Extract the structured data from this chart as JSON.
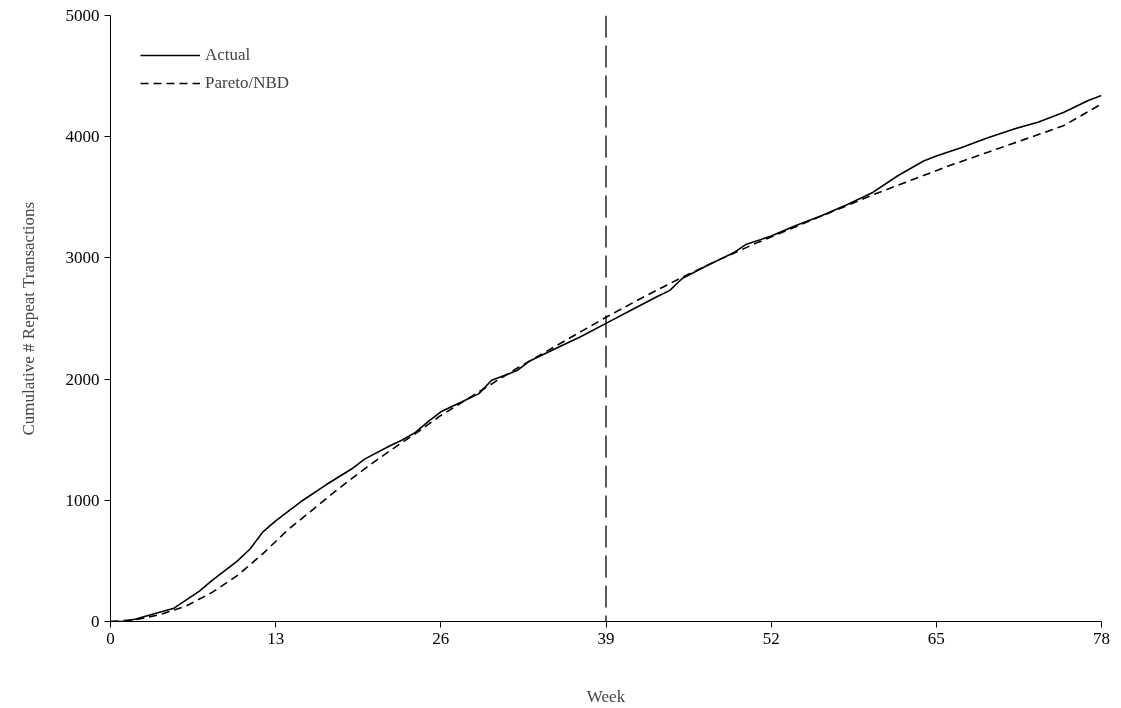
{
  "chart_data": {
    "type": "line",
    "xlabel": "Week",
    "ylabel": "Cumulative # Repeat Transactions",
    "xlim": [
      0,
      78
    ],
    "ylim": [
      0,
      5000
    ],
    "xticks": [
      0,
      13,
      26,
      39,
      52,
      65,
      78
    ],
    "yticks": [
      0,
      1000,
      2000,
      3000,
      4000,
      5000
    ],
    "grid": false,
    "legend": "top left",
    "marker": "none",
    "series": [
      {
        "name": "Actual",
        "color": "#000000",
        "line_style": "solid",
        "x": [
          0,
          1,
          2,
          4,
          5,
          6,
          7,
          8,
          10,
          11,
          12,
          13,
          15,
          17,
          19,
          20,
          22,
          23,
          24,
          25,
          26,
          28,
          29,
          30,
          32,
          33,
          35,
          37,
          39,
          41,
          43,
          44,
          45,
          47,
          49,
          50,
          52,
          54,
          56,
          58,
          60,
          62,
          64,
          65,
          67,
          69,
          71,
          73,
          75,
          77,
          78
        ],
        "values": [
          0,
          0,
          20,
          80,
          110,
          180,
          250,
          340,
          500,
          600,
          740,
          830,
          990,
          1130,
          1260,
          1340,
          1450,
          1500,
          1560,
          1650,
          1730,
          1830,
          1880,
          1990,
          2070,
          2150,
          2250,
          2350,
          2460,
          2570,
          2680,
          2730,
          2830,
          2940,
          3040,
          3110,
          3180,
          3270,
          3350,
          3440,
          3540,
          3680,
          3800,
          3840,
          3910,
          3990,
          4060,
          4120,
          4200,
          4300,
          4340
        ]
      },
      {
        "name": "Pareto/NBD",
        "color": "#000000",
        "line_style": "dashed",
        "x": [
          0,
          2,
          4,
          6,
          8,
          10,
          12,
          14,
          16,
          18,
          20,
          22,
          24,
          26,
          28,
          30,
          32,
          34,
          36,
          39,
          42,
          45,
          48,
          51,
          54,
          57,
          60,
          63,
          66,
          69,
          72,
          75,
          78
        ],
        "values": [
          0,
          15,
          60,
          130,
          240,
          380,
          560,
          760,
          930,
          1100,
          1260,
          1410,
          1550,
          1700,
          1830,
          1960,
          2090,
          2210,
          2330,
          2510,
          2680,
          2840,
          2990,
          3130,
          3260,
          3390,
          3520,
          3640,
          3760,
          3870,
          3980,
          4090,
          4270
        ]
      }
    ],
    "ref_lines": [
      {
        "axis": "x",
        "value": 39,
        "line_style": "dashed",
        "color": "#000000"
      }
    ]
  }
}
